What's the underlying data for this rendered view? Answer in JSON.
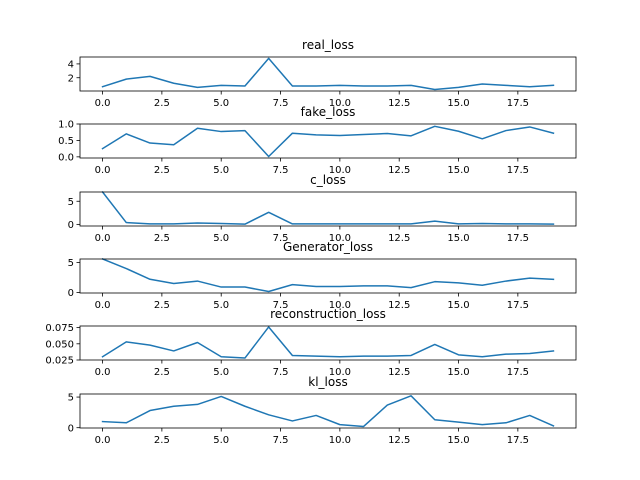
{
  "chart_data": [
    {
      "type": "line",
      "title": "real_loss",
      "x": [
        0,
        1,
        2,
        3,
        4,
        5,
        6,
        7,
        8,
        9,
        10,
        11,
        12,
        13,
        14,
        15,
        16,
        17,
        18,
        19
      ],
      "y": [
        0.7,
        1.8,
        2.2,
        1.2,
        0.6,
        0.9,
        0.8,
        4.8,
        0.8,
        0.8,
        0.9,
        0.8,
        0.8,
        0.9,
        0.3,
        0.6,
        1.1,
        0.9,
        0.7,
        0.9
      ],
      "xlim": [
        -0.95,
        19.95
      ],
      "ylim": [
        0.08,
        5.0
      ],
      "xticks": [
        0.0,
        2.5,
        5.0,
        7.5,
        10.0,
        12.5,
        15.0,
        17.5
      ],
      "xtick_labels": [
        "0.0",
        "2.5",
        "5.0",
        "7.5",
        "10.0",
        "12.5",
        "15.0",
        "17.5"
      ],
      "yticks": [
        2,
        4
      ],
      "ytick_labels": [
        "2",
        "4"
      ],
      "grid": false
    },
    {
      "type": "line",
      "title": "fake_loss",
      "x": [
        0,
        1,
        2,
        3,
        4,
        5,
        6,
        7,
        8,
        9,
        10,
        11,
        12,
        13,
        14,
        15,
        16,
        17,
        18,
        19
      ],
      "y": [
        0.25,
        0.7,
        0.42,
        0.37,
        0.87,
        0.77,
        0.8,
        0.01,
        0.72,
        0.67,
        0.65,
        0.68,
        0.71,
        0.64,
        0.93,
        0.78,
        0.55,
        0.8,
        0.91,
        0.72
      ],
      "xlim": [
        -0.95,
        19.95
      ],
      "ylim": [
        -0.035,
        1.0
      ],
      "xticks": [
        0.0,
        2.5,
        5.0,
        7.5,
        10.0,
        12.5,
        15.0,
        17.5
      ],
      "xtick_labels": [
        "0.0",
        "2.5",
        "5.0",
        "7.5",
        "10.0",
        "12.5",
        "15.0",
        "17.5"
      ],
      "yticks": [
        0.0,
        0.5,
        1.0
      ],
      "ytick_labels": [
        "0.0",
        "0.5",
        "1.0"
      ],
      "grid": false
    },
    {
      "type": "line",
      "title": "c_loss",
      "x": [
        0,
        1,
        2,
        3,
        4,
        5,
        6,
        7,
        8,
        9,
        10,
        11,
        12,
        13,
        14,
        15,
        16,
        17,
        18,
        19
      ],
      "y": [
        7.0,
        0.4,
        0.1,
        0.1,
        0.3,
        0.2,
        0.05,
        2.6,
        0.1,
        0.1,
        0.1,
        0.1,
        0.1,
        0.1,
        0.7,
        0.1,
        0.2,
        0.1,
        0.1,
        0.05
      ],
      "xlim": [
        -0.95,
        19.95
      ],
      "ylim": [
        -0.35,
        7.0
      ],
      "xticks": [
        0.0,
        2.5,
        5.0,
        7.5,
        10.0,
        12.5,
        15.0,
        17.5
      ],
      "xtick_labels": [
        "0.0",
        "2.5",
        "5.0",
        "7.5",
        "10.0",
        "12.5",
        "15.0",
        "17.5"
      ],
      "yticks": [
        0,
        5
      ],
      "ytick_labels": [
        "0",
        "5"
      ],
      "grid": false
    },
    {
      "type": "line",
      "title": "Generator_loss",
      "x": [
        0,
        1,
        2,
        3,
        4,
        5,
        6,
        7,
        8,
        9,
        10,
        11,
        12,
        13,
        14,
        15,
        16,
        17,
        18,
        19
      ],
      "y": [
        5.6,
        4.0,
        2.2,
        1.5,
        1.9,
        0.9,
        0.9,
        0.15,
        1.3,
        1.0,
        1.0,
        1.1,
        1.1,
        0.8,
        1.8,
        1.6,
        1.2,
        1.9,
        2.4,
        2.2
      ],
      "xlim": [
        -0.95,
        19.95
      ],
      "ylim": [
        -0.1,
        5.6
      ],
      "xticks": [
        0.0,
        2.5,
        5.0,
        7.5,
        10.0,
        12.5,
        15.0,
        17.5
      ],
      "xtick_labels": [
        "0.0",
        "2.5",
        "5.0",
        "7.5",
        "10.0",
        "12.5",
        "15.0",
        "17.5"
      ],
      "yticks": [
        0,
        5
      ],
      "ytick_labels": [
        "0",
        "5"
      ],
      "grid": false
    },
    {
      "type": "line",
      "title": "reconstruction_loss",
      "x": [
        0,
        1,
        2,
        3,
        4,
        5,
        6,
        7,
        8,
        9,
        10,
        11,
        12,
        13,
        14,
        15,
        16,
        17,
        18,
        19
      ],
      "y": [
        0.03,
        0.053,
        0.048,
        0.039,
        0.052,
        0.03,
        0.028,
        0.076,
        0.032,
        0.031,
        0.03,
        0.031,
        0.031,
        0.032,
        0.049,
        0.033,
        0.03,
        0.034,
        0.035,
        0.039
      ],
      "xlim": [
        -0.95,
        19.95
      ],
      "ylim": [
        0.025,
        0.0775
      ],
      "xticks": [
        0.0,
        2.5,
        5.0,
        7.5,
        10.0,
        12.5,
        15.0,
        17.5
      ],
      "xtick_labels": [
        "0.0",
        "2.5",
        "5.0",
        "7.5",
        "10.0",
        "12.5",
        "15.0",
        "17.5"
      ],
      "yticks": [
        0.025,
        0.05,
        0.075
      ],
      "ytick_labels": [
        "0.025",
        "0.050",
        "0.075"
      ],
      "grid": false
    },
    {
      "type": "line",
      "title": "kl_loss",
      "x": [
        0,
        1,
        2,
        3,
        4,
        5,
        6,
        7,
        8,
        9,
        10,
        11,
        12,
        13,
        14,
        15,
        16,
        17,
        18,
        19
      ],
      "y": [
        1.0,
        0.8,
        2.8,
        3.5,
        3.8,
        5.1,
        3.5,
        2.1,
        1.1,
        2.0,
        0.5,
        0.2,
        3.7,
        5.2,
        1.3,
        0.9,
        0.5,
        0.8,
        2.0,
        0.3
      ],
      "xlim": [
        -0.95,
        19.95
      ],
      "ylim": [
        -0.05,
        5.5
      ],
      "xticks": [
        0.0,
        2.5,
        5.0,
        7.5,
        10.0,
        12.5,
        15.0,
        17.5
      ],
      "xtick_labels": [
        "0.0",
        "2.5",
        "5.0",
        "7.5",
        "10.0",
        "12.5",
        "15.0",
        "17.5"
      ],
      "yticks": [
        0,
        5
      ],
      "ytick_labels": [
        "0",
        "5"
      ],
      "grid": false
    }
  ],
  "colors": {
    "line": "#1f77b4"
  }
}
